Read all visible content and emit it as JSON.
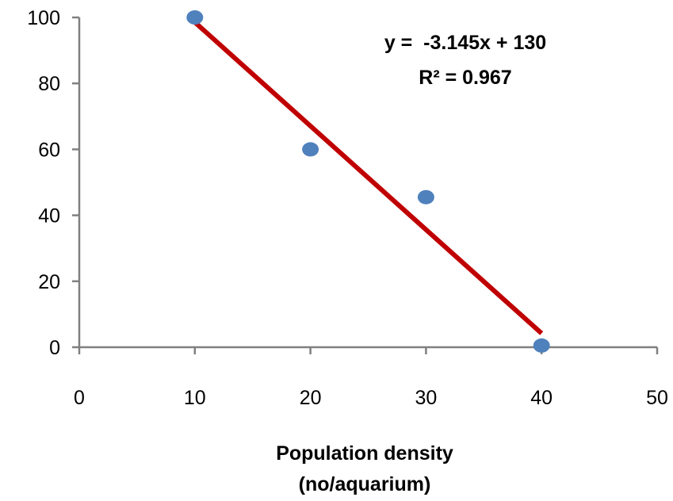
{
  "chart_data": {
    "type": "scatter",
    "title": "",
    "xlabel": "",
    "ylabel": "",
    "xlabel_lines": [
      "Population density",
      "(no/aquarium)"
    ],
    "xlim": [
      0,
      50
    ],
    "ylim": [
      0,
      100
    ],
    "x_ticks": [
      0,
      10,
      20,
      30,
      40,
      50
    ],
    "y_ticks": [
      0,
      20,
      40,
      60,
      80,
      100
    ],
    "x_tick_labels": [
      "0",
      "10",
      "20",
      "30",
      "40",
      "50"
    ],
    "y_tick_labels": [
      "0",
      "20",
      "40",
      "60",
      "80",
      "100"
    ],
    "grid": false,
    "legend": "none",
    "series": [
      {
        "x": [
          10,
          20,
          30,
          40
        ],
        "y": [
          100,
          60,
          45.5,
          0.5
        ],
        "color": "#4F81BD"
      }
    ],
    "trendline": {
      "type": "linear",
      "slope": -3.145,
      "intercept": 130,
      "x_range": [
        10,
        40
      ],
      "color": "#C00000"
    },
    "annotations": {
      "equation": "y =  -3.145x + 130",
      "r_squared": "R² = 0.967"
    },
    "colors": {
      "axis": "#808080",
      "points": "#4F81BD",
      "trendline": "#C00000"
    }
  }
}
